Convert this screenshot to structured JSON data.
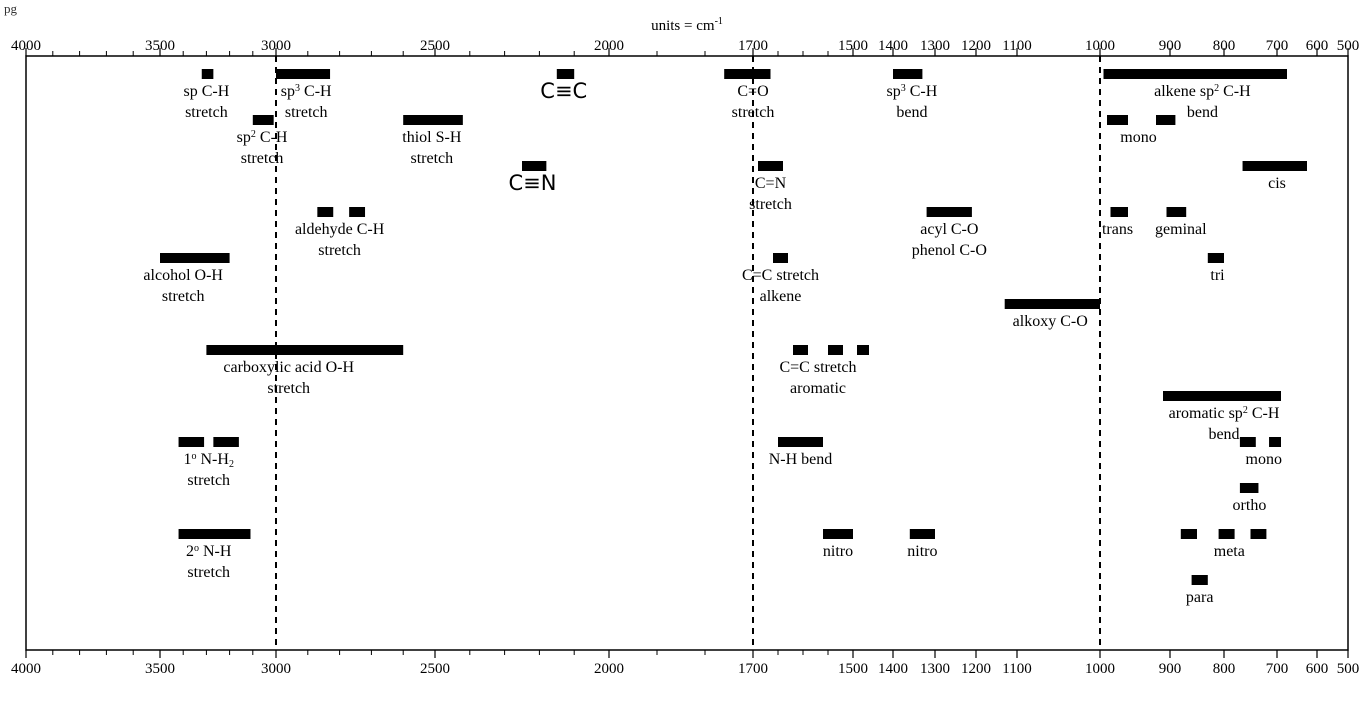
{
  "page_label": "pg",
  "chart_data": {
    "type": "bar",
    "title": "",
    "axis_label": "units = cm",
    "axis_label_superscript": "-1",
    "x_ticks": [
      4000,
      3500,
      3000,
      2500,
      2000,
      1700,
      1500,
      1400,
      1300,
      1200,
      1100,
      1000,
      900,
      800,
      700,
      600,
      500
    ],
    "reference_lines": [
      3000,
      1700,
      1000
    ],
    "bars": [
      {
        "id": "sp-ch",
        "x": [
          3320,
          3270
        ],
        "row": 1
      },
      {
        "id": "sp3-ch",
        "x": [
          3000,
          2830
        ],
        "row": 1
      },
      {
        "id": "alkyne-cc",
        "x": [
          2150,
          2100
        ],
        "row": 1
      },
      {
        "id": "carbonyl-co",
        "x": [
          1760,
          1665
        ],
        "row": 1
      },
      {
        "id": "sp3-ch-bend",
        "x": [
          1400,
          1330
        ],
        "row": 1
      },
      {
        "id": "alkene-bend",
        "x": [
          995,
          675
        ],
        "row": 1
      },
      {
        "id": "sp2-ch",
        "x": [
          3100,
          3010
        ],
        "row": 2
      },
      {
        "id": "thiol-sh",
        "x": [
          2600,
          2420
        ],
        "row": 2
      },
      {
        "id": "alkene-mono-1",
        "x": [
          990,
          960
        ],
        "row": 2
      },
      {
        "id": "alkene-mono-2",
        "x": [
          920,
          890
        ],
        "row": 2
      },
      {
        "id": "nitrile-cn",
        "x": [
          2250,
          2180
        ],
        "row": 3
      },
      {
        "id": "imine-cn",
        "x": [
          1690,
          1640
        ],
        "row": 3
      },
      {
        "id": "alkene-cis",
        "x": [
          765,
          625
        ],
        "row": 3
      },
      {
        "id": "alkene-trans",
        "x": [
          985,
          960
        ],
        "row": 4
      },
      {
        "id": "aldehyde-1",
        "x": [
          2870,
          2820
        ],
        "row": 4
      },
      {
        "id": "aldehyde-2",
        "x": [
          2770,
          2720
        ],
        "row": 4
      },
      {
        "id": "acyl-co",
        "x": [
          1320,
          1210
        ],
        "row": 4
      },
      {
        "id": "alkene-geminal",
        "x": [
          905,
          870
        ],
        "row": 4
      },
      {
        "id": "alkene-tri",
        "x": [
          830,
          800
        ],
        "row": 5
      },
      {
        "id": "alkene-cc-stretch",
        "x": [
          1660,
          1630
        ],
        "row": 5
      },
      {
        "id": "alcohol-oh",
        "x": [
          3500,
          3200
        ],
        "row": 5
      },
      {
        "id": "alkoxy-co",
        "x": [
          1130,
          1000
        ],
        "row": 6
      },
      {
        "id": "aromatic-cc-1",
        "x": [
          1620,
          1590
        ],
        "row": 7
      },
      {
        "id": "aromatic-cc-2",
        "x": [
          1550,
          1520
        ],
        "row": 7
      },
      {
        "id": "aromatic-cc-3",
        "x": [
          1490,
          1460
        ],
        "row": 7
      },
      {
        "id": "carboxylic-oh",
        "x": [
          3300,
          2600
        ],
        "row": 7
      },
      {
        "id": "aromatic-bend",
        "x": [
          910,
          690
        ],
        "row": 8
      },
      {
        "id": "primary-nh-1",
        "x": [
          3420,
          3310
        ],
        "row": 9
      },
      {
        "id": "primary-nh-2",
        "x": [
          3270,
          3160
        ],
        "row": 9
      },
      {
        "id": "nh-bend",
        "x": [
          1650,
          1560
        ],
        "row": 9
      },
      {
        "id": "aromatic-mono-1",
        "x": [
          770,
          740
        ],
        "row": 9
      },
      {
        "id": "aromatic-mono-2",
        "x": [
          715,
          690
        ],
        "row": 9
      },
      {
        "id": "aromatic-ortho",
        "x": [
          770,
          735
        ],
        "row": 10
      },
      {
        "id": "secondary-nh",
        "x": [
          3420,
          3110
        ],
        "row": 11
      },
      {
        "id": "nitro-1",
        "x": [
          1560,
          1500
        ],
        "row": 11
      },
      {
        "id": "nitro-2",
        "x": [
          1360,
          1300
        ],
        "row": 11
      },
      {
        "id": "aromatic-meta-1",
        "x": [
          880,
          850
        ],
        "row": 11
      },
      {
        "id": "aromatic-meta-2",
        "x": [
          810,
          780
        ],
        "row": 11
      },
      {
        "id": "aromatic-meta-3",
        "x": [
          750,
          720
        ],
        "row": 11
      },
      {
        "id": "aromatic-para",
        "x": [
          860,
          830
        ],
        "row": 12
      }
    ],
    "labels": [
      {
        "id": "sp-ch",
        "lines": [
          "sp C-H",
          "stretch"
        ],
        "at": 3300,
        "row": 1
      },
      {
        "id": "sp3-ch",
        "lines": [
          [
            "sp",
            "3",
            " C-H"
          ],
          "stretch"
        ],
        "at": 2905,
        "row": 1
      },
      {
        "id": "alkyne-cc",
        "lines": [
          "C≡C"
        ],
        "at": 2130,
        "row": 1,
        "style": "sans"
      },
      {
        "id": "carbonyl-co",
        "lines": [
          "C=O",
          "stretch"
        ],
        "at": 1700,
        "row": 1
      },
      {
        "id": "sp3-ch-bend",
        "lines": [
          [
            "sp",
            "3",
            " C-H"
          ],
          "bend"
        ],
        "at": 1355,
        "row": 1
      },
      {
        "id": "alkene-bend",
        "lines": [
          [
            "alkene sp",
            "2",
            " C-H"
          ],
          "bend"
        ],
        "at": 840,
        "row": 1
      },
      {
        "id": "sp2-ch",
        "lines": [
          [
            "sp",
            "2",
            " C-H"
          ],
          "stretch"
        ],
        "at": 3060,
        "row": 2
      },
      {
        "id": "thiol-sh",
        "lines": [
          "thiol S-H",
          "stretch"
        ],
        "at": 2510,
        "row": 2
      },
      {
        "id": "alkene-mono",
        "lines": [
          "mono"
        ],
        "at": 945,
        "row": 2
      },
      {
        "id": "nitrile-cn",
        "lines": [
          "C≡N"
        ],
        "at": 2220,
        "row": 3,
        "style": "sans"
      },
      {
        "id": "imine-cn",
        "lines": [
          "C=N",
          "stretch"
        ],
        "at": 1665,
        "row": 3
      },
      {
        "id": "alkene-cis",
        "lines": [
          "cis"
        ],
        "at": 700,
        "row": 3
      },
      {
        "id": "alkene-trans",
        "lines": [
          "trans"
        ],
        "at": 975,
        "row": 4
      },
      {
        "id": "aldehyde-ch",
        "lines": [
          "aldehyde C-H",
          "stretch"
        ],
        "at": 2800,
        "row": 4
      },
      {
        "id": "acyl-co",
        "lines": [
          "acyl C-O",
          "phenol C-O"
        ],
        "at": 1265,
        "row": 4
      },
      {
        "id": "alkene-geminal",
        "lines": [
          "geminal"
        ],
        "at": 880,
        "row": 4
      },
      {
        "id": "alkene-tri",
        "lines": [
          "tri"
        ],
        "at": 812,
        "row": 5
      },
      {
        "id": "alkene-cc-stretch",
        "lines": [
          "C=C stretch",
          "alkene"
        ],
        "at": 1645,
        "row": 5
      },
      {
        "id": "alcohol-oh",
        "lines": [
          "alcohol O-H",
          "stretch"
        ],
        "at": 3400,
        "row": 5
      },
      {
        "id": "alkoxy-co",
        "lines": [
          "alkoxy C-O"
        ],
        "at": 1060,
        "row": 6
      },
      {
        "id": "aromatic-cc",
        "lines": [
          "C=C stretch",
          "aromatic"
        ],
        "at": 1570,
        "row": 7
      },
      {
        "id": "carboxylic-oh",
        "lines": [
          "carboxylic acid O-H",
          "stretch"
        ],
        "at": 2960,
        "row": 7
      },
      {
        "id": "aromatic-bend",
        "lines": [
          [
            "aromatic sp",
            "2",
            " C-H"
          ],
          "bend"
        ],
        "at": 800,
        "row": 8
      },
      {
        "id": "primary-nh",
        "lines": [
          [
            "1",
            "o",
            " N-H",
            "2",
            ""
          ],
          "stretch"
        ],
        "at": 3290,
        "row": 9
      },
      {
        "id": "nh-bend",
        "lines": [
          "N-H bend"
        ],
        "at": 1605,
        "row": 9
      },
      {
        "id": "aromatic-mono",
        "lines": [
          "mono"
        ],
        "at": 725,
        "row": 9
      },
      {
        "id": "aromatic-ortho",
        "lines": [
          "ortho"
        ],
        "at": 752,
        "row": 10
      },
      {
        "id": "secondary-nh",
        "lines": [
          [
            "2",
            "o",
            " N-H"
          ],
          "stretch"
        ],
        "at": 3290,
        "row": 11
      },
      {
        "id": "nitro-1",
        "lines": [
          "nitro"
        ],
        "at": 1530,
        "row": 11
      },
      {
        "id": "nitro-2",
        "lines": [
          "nitro"
        ],
        "at": 1330,
        "row": 11
      },
      {
        "id": "aromatic-meta",
        "lines": [
          "meta"
        ],
        "at": 790,
        "row": 11
      },
      {
        "id": "aromatic-para",
        "lines": [
          "para"
        ],
        "at": 845,
        "row": 12
      }
    ]
  }
}
